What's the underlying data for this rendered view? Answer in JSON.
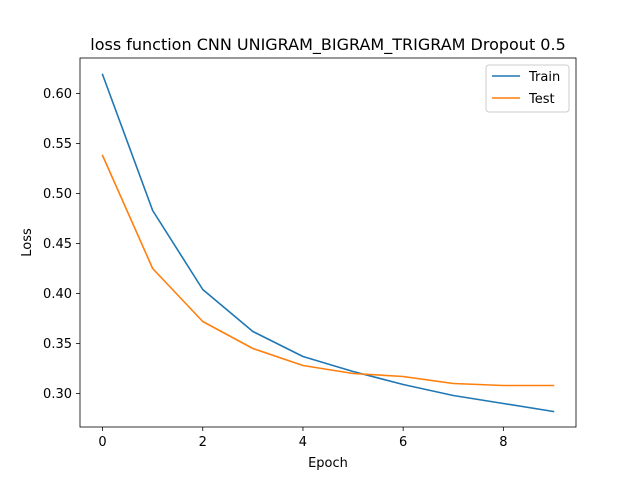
{
  "chart_data": {
    "type": "line",
    "title": "loss function CNN UNIGRAM_BIGRAM_TRIGRAM Dropout 0.5",
    "xlabel": "Epoch",
    "ylabel": "Loss",
    "x": [
      0,
      1,
      2,
      3,
      4,
      5,
      6,
      7,
      8,
      9
    ],
    "xlim": [
      -0.45,
      9.45
    ],
    "ylim": [
      0.2665,
      0.6355
    ],
    "xticks": [
      0,
      2,
      4,
      6,
      8
    ],
    "yticks": [
      0.3,
      0.35,
      0.4,
      0.45,
      0.5,
      0.55,
      0.6
    ],
    "xtick_labels": [
      "0",
      "2",
      "4",
      "6",
      "8"
    ],
    "ytick_labels": [
      "0.30",
      "0.35",
      "0.40",
      "0.45",
      "0.50",
      "0.55",
      "0.60"
    ],
    "grid": false,
    "legend_position": "top-right",
    "series": [
      {
        "name": "Train",
        "color": "#1f77b4",
        "values": [
          0.619,
          0.483,
          0.404,
          0.362,
          0.337,
          0.322,
          0.309,
          0.298,
          0.29,
          0.282
        ]
      },
      {
        "name": "Test",
        "color": "#ff7f0e",
        "values": [
          0.538,
          0.425,
          0.372,
          0.345,
          0.328,
          0.32,
          0.317,
          0.31,
          0.308,
          0.308
        ]
      }
    ]
  }
}
